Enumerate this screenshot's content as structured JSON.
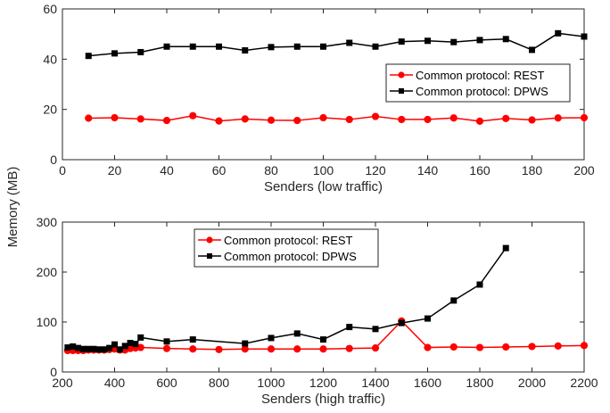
{
  "shared_ylabel": "Memory (MB)",
  "chart_data": [
    {
      "type": "line",
      "xlabel": "Senders (low traffic)",
      "ylabel": "",
      "xlim": [
        0,
        200
      ],
      "ylim": [
        0,
        60
      ],
      "xticks": [
        0,
        20,
        40,
        60,
        80,
        100,
        120,
        140,
        160,
        180,
        200
      ],
      "yticks": [
        0,
        20,
        40,
        60
      ],
      "grid": false,
      "legend_position": "center-right",
      "x": [
        10,
        20,
        30,
        40,
        50,
        60,
        70,
        80,
        90,
        100,
        110,
        120,
        130,
        140,
        150,
        160,
        170,
        180,
        190,
        200
      ],
      "series": [
        {
          "name": "Common protocol: REST",
          "color": "#ff0000",
          "marker": "circle",
          "values": [
            16.5,
            16.7,
            16.2,
            15.6,
            17.5,
            15.4,
            16.2,
            15.7,
            15.6,
            16.7,
            16.0,
            17.2,
            16.0,
            16.0,
            16.6,
            15.3,
            16.4,
            15.8,
            16.6,
            16.7
          ]
        },
        {
          "name": "Common protocol: DPWS",
          "color": "#000000",
          "marker": "square",
          "values": [
            41.3,
            42.3,
            42.8,
            45.0,
            45.0,
            45.0,
            43.5,
            44.8,
            45.0,
            45.0,
            46.5,
            45.0,
            47.0,
            47.3,
            46.8,
            47.6,
            48.0,
            43.7,
            50.3,
            49.0
          ]
        }
      ]
    },
    {
      "type": "line",
      "xlabel": "Senders (high traffic)",
      "ylabel": "",
      "xlim": [
        200,
        2200
      ],
      "ylim": [
        0,
        300
      ],
      "xticks": [
        200,
        400,
        600,
        800,
        1000,
        1200,
        1400,
        1600,
        1800,
        2000,
        2200
      ],
      "yticks": [
        0,
        100,
        200,
        300
      ],
      "grid": false,
      "legend_position": "top-left",
      "series": [
        {
          "name": "Common protocol: REST",
          "color": "#ff0000",
          "marker": "circle",
          "x": [
            220,
            240,
            260,
            280,
            300,
            320,
            340,
            360,
            380,
            400,
            420,
            440,
            460,
            480,
            500,
            600,
            700,
            800,
            900,
            1000,
            1100,
            1200,
            1300,
            1400,
            1500,
            1600,
            1700,
            1800,
            1900,
            2000,
            2100,
            2200
          ],
          "values": [
            43,
            43,
            43,
            43,
            44,
            44,
            44,
            44,
            45,
            46,
            44,
            44,
            47,
            48,
            49,
            47,
            46,
            45,
            46,
            46,
            46,
            46,
            47,
            48,
            102,
            49,
            50,
            49,
            50,
            51,
            52,
            53
          ]
        },
        {
          "name": "Common protocol: DPWS",
          "color": "#000000",
          "marker": "square",
          "x": [
            220,
            240,
            260,
            280,
            300,
            320,
            340,
            360,
            380,
            400,
            420,
            440,
            460,
            480,
            500,
            600,
            700,
            900,
            1000,
            1100,
            1200,
            1300,
            1400,
            1500,
            1600,
            1700,
            1800,
            1900
          ],
          "values": [
            49,
            51,
            48,
            46,
            46,
            46,
            45,
            45,
            48,
            55,
            45,
            52,
            58,
            56,
            69,
            61,
            65,
            57,
            68,
            77,
            65,
            90,
            86,
            98,
            107,
            143,
            175,
            248
          ]
        }
      ]
    }
  ]
}
